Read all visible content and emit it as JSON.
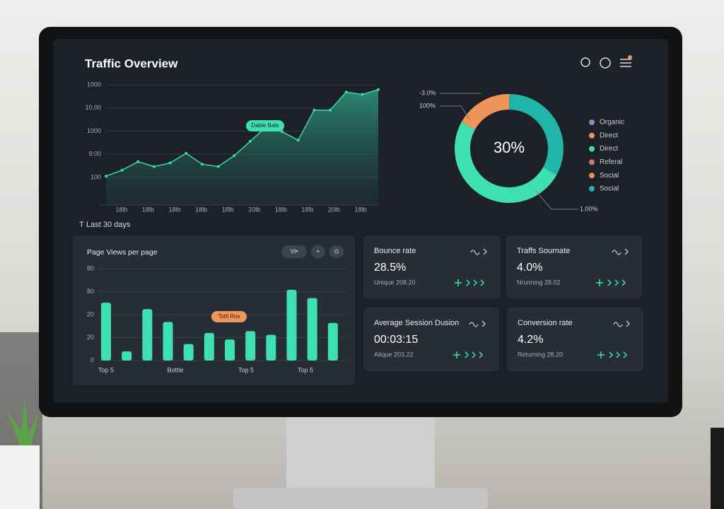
{
  "header": {
    "title": "Traffic Overview",
    "period_prefix": "T",
    "period": "Last 30 days"
  },
  "chart_data": [
    {
      "type": "area",
      "color": "#3dd6b0",
      "ylim": [
        0,
        100
      ],
      "y_labels": [
        "1000",
        "10.00",
        "1000",
        "9:00",
        "100"
      ],
      "x_labels": [
        "18lb",
        "18lb",
        "18lb",
        "18lb",
        "18lb",
        "20lb",
        "18lb",
        "18lb",
        "20lb",
        "18lb"
      ],
      "values": [
        24,
        29,
        36,
        32,
        35,
        43,
        34,
        32,
        41,
        53,
        65,
        61,
        54,
        79,
        79,
        94,
        92,
        96
      ],
      "annotation": "Dable Bats"
    },
    {
      "type": "donut",
      "center_label": "30%",
      "callouts": [
        "-3.0%",
        "100%",
        "1.00%"
      ],
      "segments": [
        {
          "value": 17,
          "color": "#f0955a"
        },
        {
          "value": 33,
          "color": "#1fb5aa"
        },
        {
          "value": 50,
          "color": "#3ee0b0"
        }
      ],
      "legend": [
        {
          "name": "Organic",
          "color": "#8a86c8"
        },
        {
          "name": "Direct",
          "color": "#f0955a"
        },
        {
          "name": "Direct",
          "color": "#3ee0b0"
        },
        {
          "name": "Referal",
          "color": "#c47a7a"
        },
        {
          "name": "Social",
          "color": "#e8905a"
        },
        {
          "name": "Social",
          "color": "#1fb5aa"
        }
      ]
    },
    {
      "type": "bar",
      "title": "Page Views per page",
      "color": "#3ee0b0",
      "ylim": [
        0,
        100
      ],
      "buttons": [
        "Vi•",
        "+",
        "⊙"
      ],
      "y_labels": [
        "80",
        "80",
        "20",
        "20",
        "0"
      ],
      "x_labels": [
        "Top 5",
        "Bottie",
        "Top 5",
        "Top 5"
      ],
      "values": [
        63,
        10,
        56,
        42,
        18,
        30,
        23,
        32,
        28,
        77,
        68,
        41
      ],
      "annotation": "Tottl Ros"
    }
  ],
  "kpis": [
    {
      "label": "Bounce rate",
      "value": "28.5%",
      "sub": "Unique 208.20"
    },
    {
      "label": "Traffs Sournate",
      "value": "4.0%",
      "sub": "Nrunning 28.02"
    },
    {
      "label": "Average Session Dusion",
      "value": "00:03:15",
      "sub": "Atique 203.22"
    },
    {
      "label": "Conversion rate",
      "value": "4.2%",
      "sub": "Returning 28.20"
    }
  ]
}
